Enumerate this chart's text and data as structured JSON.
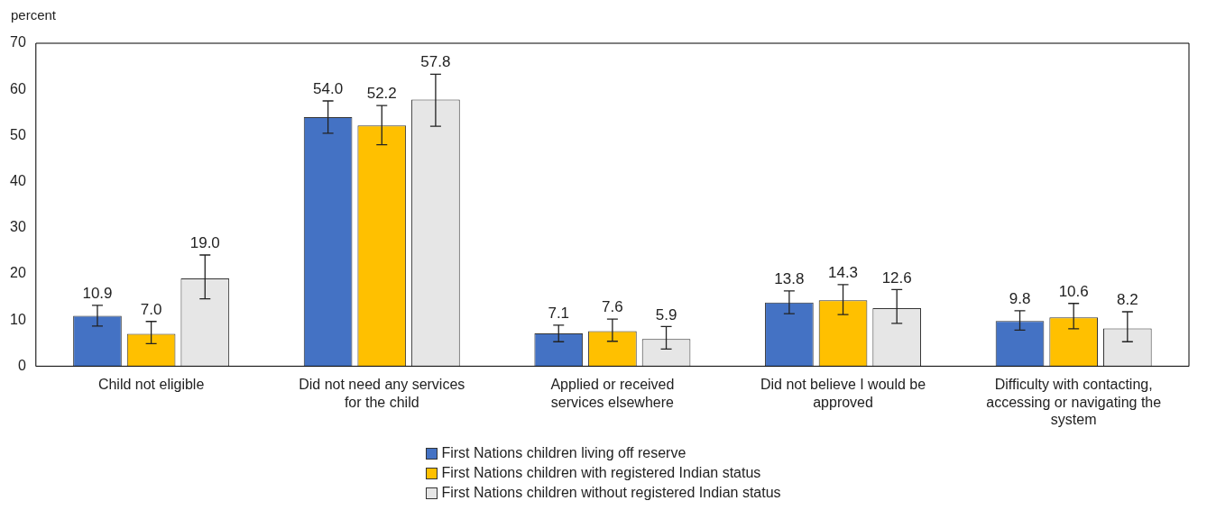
{
  "chart_data": {
    "type": "bar",
    "ylabel": "percent",
    "categories": [
      "Child not eligible",
      "Did not need any services for the child",
      "Applied or received services elsewhere",
      "Did not believe I would be approved",
      "Difficulty with contacting, accessing or navigating the system"
    ],
    "series": [
      {
        "name": "First Nations children living off reserve",
        "color": "#4472c4",
        "values": [
          10.9,
          54.0,
          7.1,
          13.8,
          9.8
        ],
        "value_labels": [
          "10.9",
          "54.0",
          "7.1",
          "13.8",
          "9.8"
        ],
        "errors": [
          [
            8.7,
            13.2
          ],
          [
            50.5,
            57.5
          ],
          [
            5.3,
            8.9
          ],
          [
            11.4,
            16.3
          ],
          [
            7.8,
            12.0
          ]
        ]
      },
      {
        "name": "First Nations children with registered Indian status",
        "color": "#ffc000",
        "values": [
          7.0,
          52.2,
          7.6,
          14.3,
          10.6
        ],
        "value_labels": [
          "7.0",
          "52.2",
          "7.6",
          "14.3",
          "10.6"
        ],
        "errors": [
          [
            4.9,
            9.7
          ],
          [
            48.0,
            56.5
          ],
          [
            5.4,
            10.2
          ],
          [
            11.2,
            17.7
          ],
          [
            8.1,
            13.6
          ]
        ]
      },
      {
        "name": "First Nations children without registered Indian status",
        "color": "#e6e6e6",
        "values": [
          19.0,
          57.8,
          5.9,
          12.6,
          8.2
        ],
        "value_labels": [
          "19.0",
          "57.8",
          "5.9",
          "12.6",
          "8.2"
        ],
        "errors": [
          [
            14.6,
            24.1
          ],
          [
            52.0,
            63.3
          ],
          [
            3.7,
            8.6
          ],
          [
            9.3,
            16.6
          ],
          [
            5.3,
            11.8
          ]
        ]
      }
    ],
    "ylim": [
      0,
      70
    ],
    "yticks": [
      0,
      10,
      20,
      30,
      40,
      50,
      60,
      70
    ],
    "grid": false,
    "legend": "bottom"
  }
}
